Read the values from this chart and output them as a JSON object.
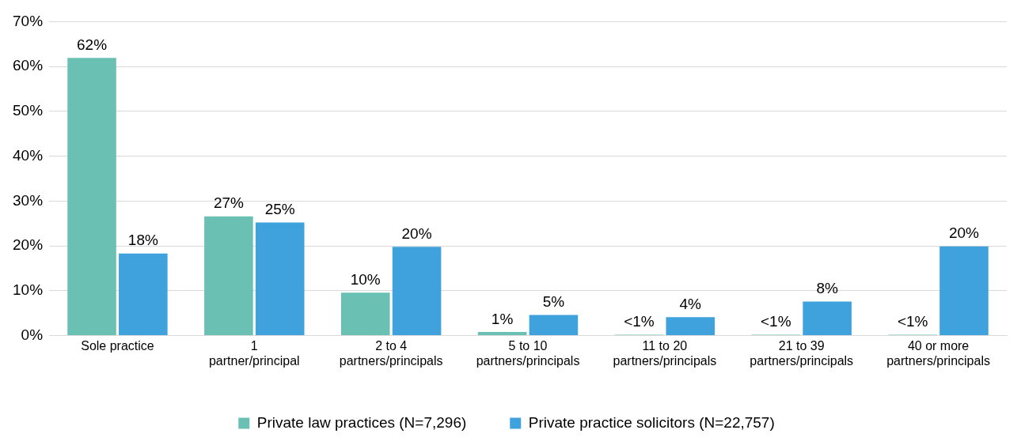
{
  "chart_data": {
    "type": "bar",
    "categories": [
      "Sole practice",
      "1\npartner/principal",
      "2 to 4\npartners/principals",
      "5 to 10\npartners/principals",
      "11 to 20\npartners/principals",
      "21 to 39\npartners/principals",
      "40 or more\npartners/principals"
    ],
    "series": [
      {
        "name": "Private law practices (N=7,296)",
        "color": "#6ac0b3",
        "values": [
          61.9,
          26.6,
          9.6,
          0.8,
          0.2,
          0.2,
          0.2
        ],
        "value_labels": [
          "62%",
          "27%",
          "10%",
          "1%",
          "<1%",
          "<1%",
          "<1%"
        ]
      },
      {
        "name": "Private practice solicitors (N=22,757)",
        "color": "#3fa2dc",
        "values": [
          18.3,
          25.2,
          19.8,
          4.6,
          4.1,
          7.6,
          19.9
        ],
        "value_labels": [
          "18%",
          "25%",
          "20%",
          "5%",
          "4%",
          "8%",
          "20%"
        ]
      }
    ],
    "ylim": [
      0,
      70
    ],
    "yticks": [
      {
        "value": 0,
        "label": "0%"
      },
      {
        "value": 10,
        "label": "10%"
      },
      {
        "value": 20,
        "label": "20%"
      },
      {
        "value": 30,
        "label": "30%"
      },
      {
        "value": 40,
        "label": "40%"
      },
      {
        "value": 50,
        "label": "50%"
      },
      {
        "value": 60,
        "label": "60%"
      },
      {
        "value": 70,
        "label": "70%"
      }
    ],
    "grid": "y",
    "legend": "bottom"
  }
}
